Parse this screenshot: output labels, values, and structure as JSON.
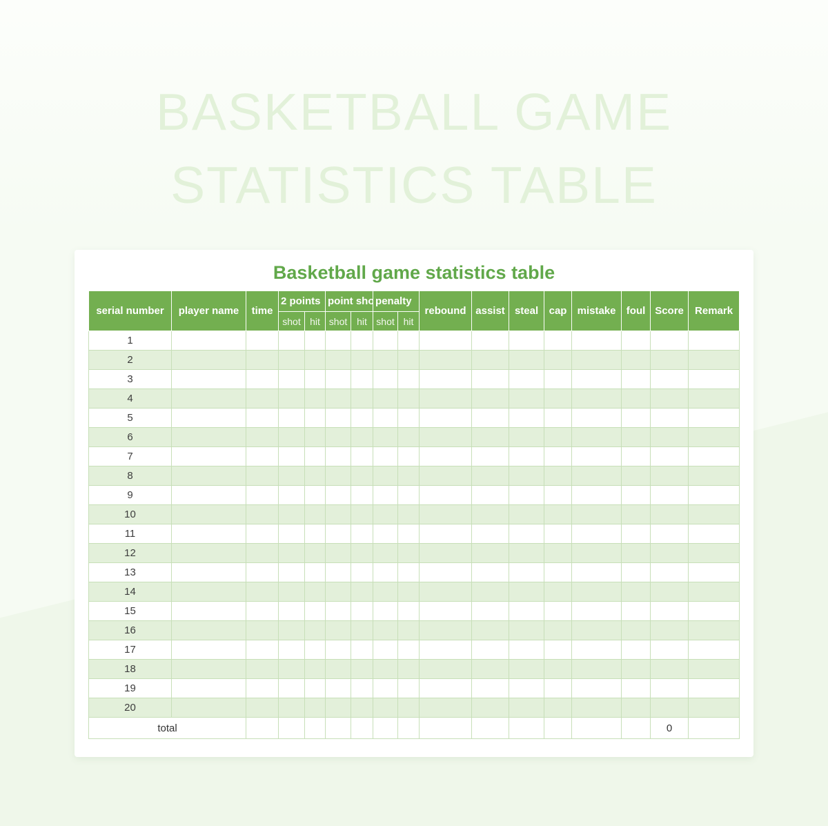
{
  "watermark": {
    "line1": "BASKETBALL GAME",
    "line2": "STATISTICS TABLE"
  },
  "title": "Basketball game statistics table",
  "table": {
    "header": {
      "serial": "serial number",
      "player": "player name",
      "time": "time",
      "group_2points": "2 points",
      "group_pointshot": "point shot",
      "group_penalty": "penalty",
      "sub_shot": "shot",
      "sub_hit": "hit",
      "rebound": "rebound",
      "assist": "assist",
      "steal": "steal",
      "cap": "cap",
      "mistake": "mistake",
      "foul": "foul",
      "score": "Score",
      "remark": "Remark"
    },
    "serials": [
      "1",
      "2",
      "3",
      "4",
      "5",
      "6",
      "7",
      "8",
      "9",
      "10",
      "11",
      "12",
      "13",
      "14",
      "15",
      "16",
      "17",
      "18",
      "19",
      "20"
    ],
    "data_columns_per_row": 16,
    "total": {
      "label": "total",
      "score_value": "0"
    }
  },
  "colors": {
    "header_green": "#73af50",
    "title_green": "#61a84a",
    "row_stripe_green": "#e3f0da",
    "grid_border_green": "#c7dfb8",
    "watermark_green": "#e2f1d9",
    "background_green": "#f6fbf3"
  }
}
